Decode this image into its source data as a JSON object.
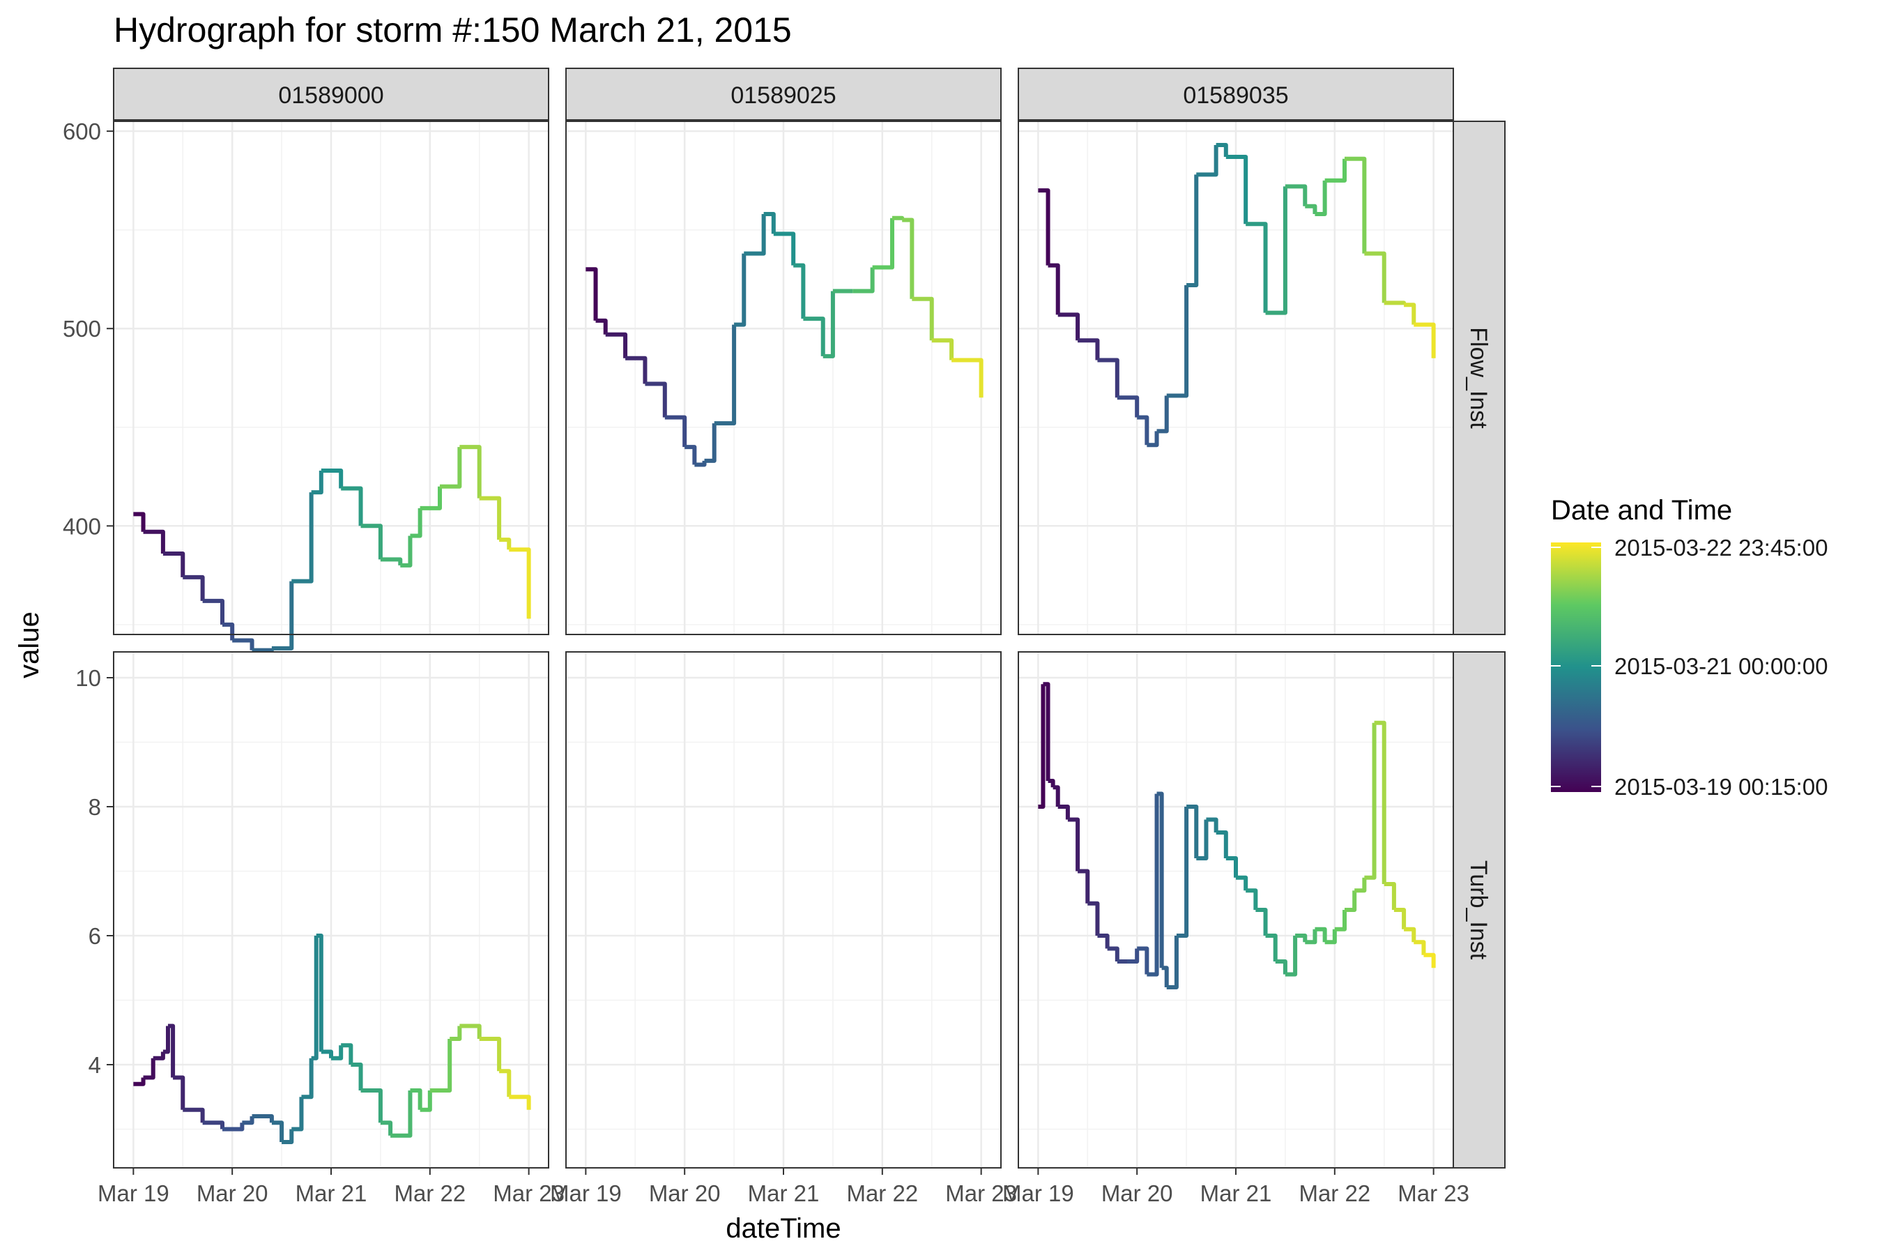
{
  "chart_data": {
    "type": "line",
    "title": "Hydrograph for storm #:150   March 21, 2015",
    "xlabel": "dateTime",
    "ylabel": "value",
    "x_ticks": [
      "Mar 19",
      "Mar 20",
      "Mar 21",
      "Mar 22",
      "Mar 23"
    ],
    "x_range": [
      "2015-03-19 00:15:00",
      "2015-03-22 23:45:00"
    ],
    "columns": [
      "01589000",
      "01589025",
      "01589035"
    ],
    "rows": [
      {
        "label": "Flow_Inst",
        "ylim": [
          345,
          605
        ],
        "ticks": [
          400,
          500,
          600
        ]
      },
      {
        "label": "Turb_Inst",
        "ylim": [
          2.4,
          10.4
        ],
        "ticks": [
          4,
          6,
          8,
          10
        ]
      }
    ],
    "legend": {
      "title": "Date and Time",
      "labels": [
        "2015-03-22 23:45:00",
        "2015-03-21 00:00:00",
        "2015-03-19 00:15:00"
      ],
      "colors": [
        "#440154",
        "#3b528b",
        "#21918c",
        "#5ec962",
        "#fde725"
      ],
      "placement": "right"
    },
    "grid": true,
    "panels": [
      {
        "column": "01589000",
        "variable": "Flow_Inst",
        "x_days": [
          0.0,
          0.1,
          0.3,
          0.5,
          0.7,
          0.9,
          1.0,
          1.2,
          1.4,
          1.6,
          1.8,
          1.9,
          2.1,
          2.3,
          2.5,
          2.7,
          2.8,
          2.9,
          3.1,
          3.3,
          3.5,
          3.7,
          3.8,
          4.0
        ],
        "values": [
          406,
          397,
          386,
          374,
          362,
          350,
          342,
          337,
          338,
          372,
          417,
          428,
          419,
          400,
          383,
          380,
          395,
          409,
          420,
          440,
          414,
          393,
          388,
          353
        ]
      },
      {
        "column": "01589025",
        "variable": "Flow_Inst",
        "x_days": [
          0.0,
          0.1,
          0.2,
          0.4,
          0.6,
          0.8,
          1.0,
          1.1,
          1.2,
          1.3,
          1.5,
          1.6,
          1.8,
          1.9,
          2.1,
          2.2,
          2.4,
          2.5,
          2.7,
          2.9,
          3.1,
          3.2,
          3.3,
          3.5,
          3.7,
          4.0
        ],
        "values": [
          530,
          504,
          497,
          485,
          472,
          455,
          440,
          431,
          433,
          452,
          502,
          538,
          558,
          548,
          532,
          505,
          486,
          519,
          519,
          531,
          556,
          555,
          515,
          494,
          484,
          465
        ]
      },
      {
        "column": "01589035",
        "variable": "Flow_Inst",
        "x_days": [
          0.0,
          0.1,
          0.2,
          0.4,
          0.6,
          0.8,
          1.0,
          1.1,
          1.2,
          1.3,
          1.5,
          1.6,
          1.8,
          1.9,
          2.1,
          2.3,
          2.5,
          2.7,
          2.8,
          2.9,
          3.1,
          3.3,
          3.5,
          3.7,
          3.8,
          4.0
        ],
        "values": [
          570,
          532,
          507,
          494,
          484,
          465,
          455,
          441,
          448,
          466,
          522,
          578,
          593,
          587,
          553,
          508,
          572,
          562,
          558,
          575,
          586,
          538,
          513,
          512,
          502,
          485
        ]
      },
      {
        "column": "01589000",
        "variable": "Turb_Inst",
        "x_days": [
          0.0,
          0.1,
          0.2,
          0.3,
          0.35,
          0.4,
          0.5,
          0.7,
          0.9,
          1.1,
          1.2,
          1.4,
          1.5,
          1.6,
          1.7,
          1.8,
          1.85,
          1.9,
          2.0,
          2.1,
          2.2,
          2.3,
          2.5,
          2.6,
          2.8,
          2.9,
          3.0,
          3.2,
          3.3,
          3.5,
          3.7,
          3.8,
          4.0
        ],
        "values": [
          3.7,
          3.8,
          4.1,
          4.2,
          4.6,
          3.8,
          3.3,
          3.1,
          3.0,
          3.1,
          3.2,
          3.1,
          2.8,
          3.0,
          3.5,
          4.1,
          6.0,
          4.2,
          4.1,
          4.3,
          4.0,
          3.6,
          3.1,
          2.9,
          3.6,
          3.3,
          3.6,
          4.4,
          4.6,
          4.4,
          3.9,
          3.5,
          3.3
        ]
      },
      {
        "column": "01589035",
        "variable": "Turb_Inst",
        "x_days": [
          0.0,
          0.05,
          0.1,
          0.15,
          0.2,
          0.3,
          0.4,
          0.5,
          0.6,
          0.7,
          0.8,
          0.9,
          1.0,
          1.1,
          1.2,
          1.25,
          1.3,
          1.4,
          1.5,
          1.6,
          1.7,
          1.8,
          1.9,
          2.0,
          2.1,
          2.2,
          2.3,
          2.4,
          2.5,
          2.6,
          2.7,
          2.8,
          2.9,
          3.0,
          3.1,
          3.2,
          3.3,
          3.4,
          3.5,
          3.6,
          3.7,
          3.8,
          3.9,
          4.0
        ],
        "values": [
          8.0,
          9.9,
          8.4,
          8.3,
          8.0,
          7.8,
          7.0,
          6.5,
          6.0,
          5.8,
          5.6,
          5.6,
          5.8,
          5.4,
          8.2,
          5.5,
          5.2,
          6.0,
          8.0,
          7.2,
          7.8,
          7.6,
          7.2,
          6.9,
          6.7,
          6.4,
          6.0,
          5.6,
          5.4,
          6.0,
          5.9,
          6.1,
          5.9,
          6.1,
          6.4,
          6.7,
          6.9,
          9.3,
          6.8,
          6.4,
          6.1,
          5.9,
          5.7,
          5.5
        ]
      }
    ]
  }
}
